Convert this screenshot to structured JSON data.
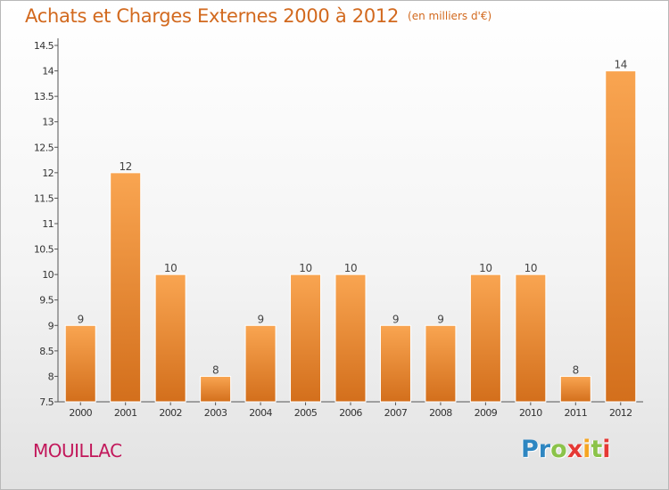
{
  "header": {
    "title": "Achats et Charges Externes 2000 à 2012",
    "unit": "(en milliers d'€)"
  },
  "footer": {
    "commune": "MOUILLAC",
    "logo_letters": [
      {
        "char": "P",
        "color": "#2e86c1"
      },
      {
        "char": "r",
        "color": "#2e86c1"
      },
      {
        "char": "o",
        "color": "#8bc34a"
      },
      {
        "char": "x",
        "color": "#e53935"
      },
      {
        "char": "i",
        "color": "#f5a623"
      },
      {
        "char": "t",
        "color": "#8bc34a"
      },
      {
        "char": "i",
        "color": "#e53935"
      }
    ]
  },
  "colors": {
    "bar_light": "#f9a551",
    "bar_dark": "#d36f1c",
    "title": "#d2691e"
  },
  "chart_data": {
    "type": "bar",
    "title": "Achats et Charges Externes 2000 à 2012",
    "subtitle": "(en milliers d'€)",
    "xlabel": "",
    "ylabel": "",
    "ylim": [
      7.5,
      14.5
    ],
    "yticks": [
      7.5,
      8,
      8.5,
      9,
      9.5,
      10,
      10.5,
      11,
      11.5,
      12,
      12.5,
      13,
      13.5,
      14,
      14.5
    ],
    "ytick_labels": [
      "7.5",
      "8",
      "8.5",
      "9",
      "9.5",
      "10",
      "10.5",
      "11",
      "11.5",
      "12",
      "12.5",
      "13",
      "13.5",
      "14",
      "14.5"
    ],
    "grid": false,
    "categories": [
      "2000",
      "2001",
      "2002",
      "2003",
      "2004",
      "2005",
      "2006",
      "2007",
      "2008",
      "2009",
      "2010",
      "2011",
      "2012"
    ],
    "values": [
      9,
      12,
      10,
      8,
      9,
      10,
      10,
      9,
      9,
      10,
      10,
      8,
      14
    ],
    "value_labels": [
      "9",
      "12",
      "10",
      "8",
      "9",
      "10",
      "10",
      "9",
      "9",
      "10",
      "10",
      "8",
      "14"
    ]
  }
}
